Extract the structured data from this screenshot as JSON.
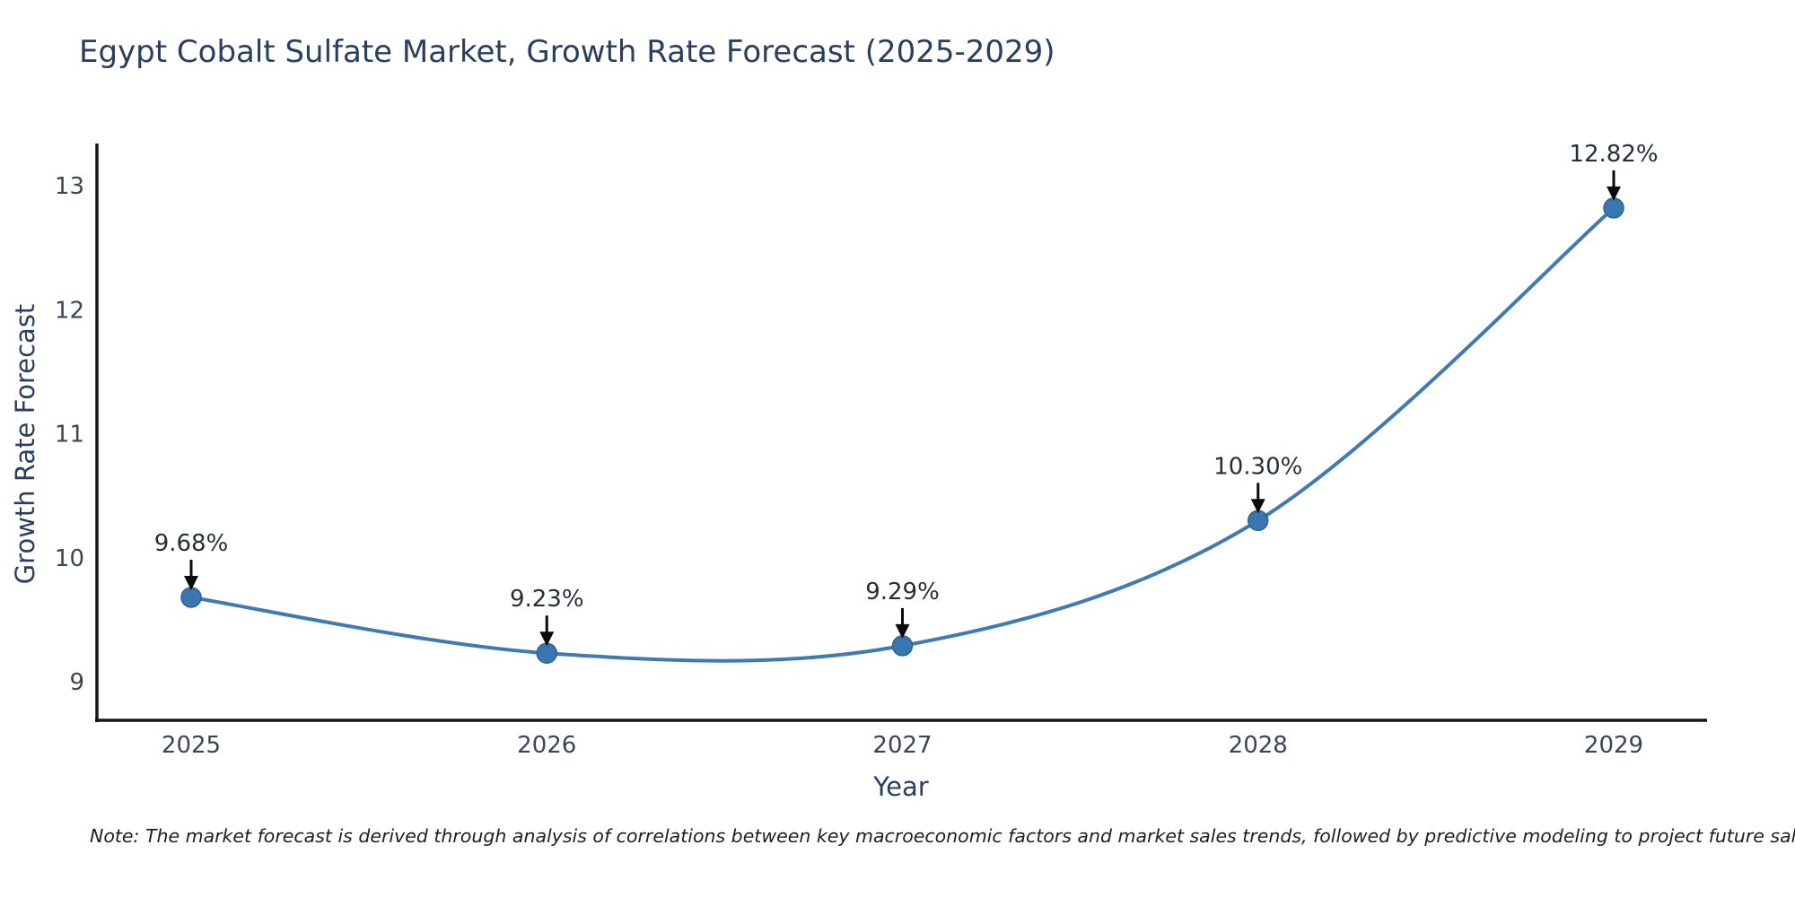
{
  "title": "Egypt Cobalt Sulfate Market, Growth Rate Forecast (2025-2029)",
  "note": "Note: The market forecast is derived through analysis of correlations between key macroeconomic factors and market sales trends, followed by predictive modeling to project future sales.",
  "chart_data": {
    "type": "line",
    "line_shape": "spline",
    "title": "Egypt Cobalt Sulfate Market, Growth Rate Forecast (2025-2029)",
    "xlabel": "Year",
    "ylabel": "Growth Rate Forecast",
    "categories": [
      "2025",
      "2026",
      "2027",
      "2028",
      "2029"
    ],
    "values": [
      9.68,
      9.23,
      9.29,
      10.3,
      12.82
    ],
    "point_labels": [
      "9.68%",
      "9.23%",
      "9.29%",
      "10.30%",
      "12.82%"
    ],
    "yticks": [
      9,
      10,
      11,
      12,
      13
    ],
    "ylim": [
      8.68,
      13.35
    ],
    "grid": false,
    "legend_position": "none",
    "markers": true,
    "annotations_arrows": true
  },
  "colors": {
    "line": "#3e7ab3",
    "marker_fill": "#3a75af",
    "marker_stroke": "#2f6296",
    "axis_line": "#161616",
    "title_text": "#2a3f5f",
    "axis_title_text": "#2a3f5f",
    "tick_text": "#3b4654",
    "annotation_text": "#252f3a",
    "arrow": "#0b0b0b",
    "background": "#ffffff"
  }
}
